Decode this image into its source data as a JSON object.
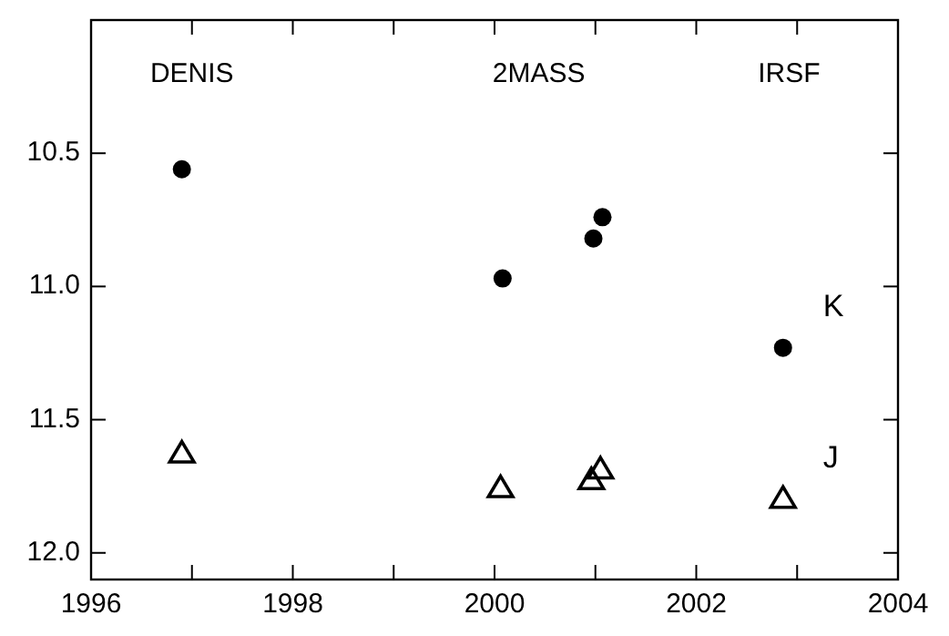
{
  "chart_data": {
    "type": "scatter",
    "xlim": [
      1996,
      2004
    ],
    "xticks": [
      1996,
      {
        "value": 1997,
        "label": null
      },
      1998,
      {
        "value": 1999,
        "label": null
      },
      2000,
      {
        "value": 2001,
        "label": null
      },
      2002,
      {
        "value": 2003,
        "label": null
      },
      2004
    ],
    "ylim": [
      12.1,
      10.0
    ],
    "yticks": [
      10.5,
      {
        "value": 11,
        "label": "11.0"
      },
      11.5,
      {
        "value": 12,
        "label": "12.0"
      }
    ],
    "grid": false,
    "legend": "right",
    "series": [
      {
        "name": "K",
        "color": "#000000",
        "marker": "circle",
        "x": [
          1996.9,
          2000.08,
          2000.98,
          2001.07,
          2002.86
        ],
        "values": [
          10.56,
          10.97,
          10.82,
          10.74,
          11.23
        ]
      },
      {
        "name": "J",
        "color": "#000000",
        "marker": "triangle",
        "x": [
          1996.9,
          2000.06,
          2000.96,
          2001.05,
          2002.86
        ],
        "values": [
          11.63,
          11.76,
          11.73,
          11.69,
          11.8
        ]
      }
    ],
    "annotations": [
      "DENIS",
      "2MASS",
      "IRSF"
    ]
  }
}
